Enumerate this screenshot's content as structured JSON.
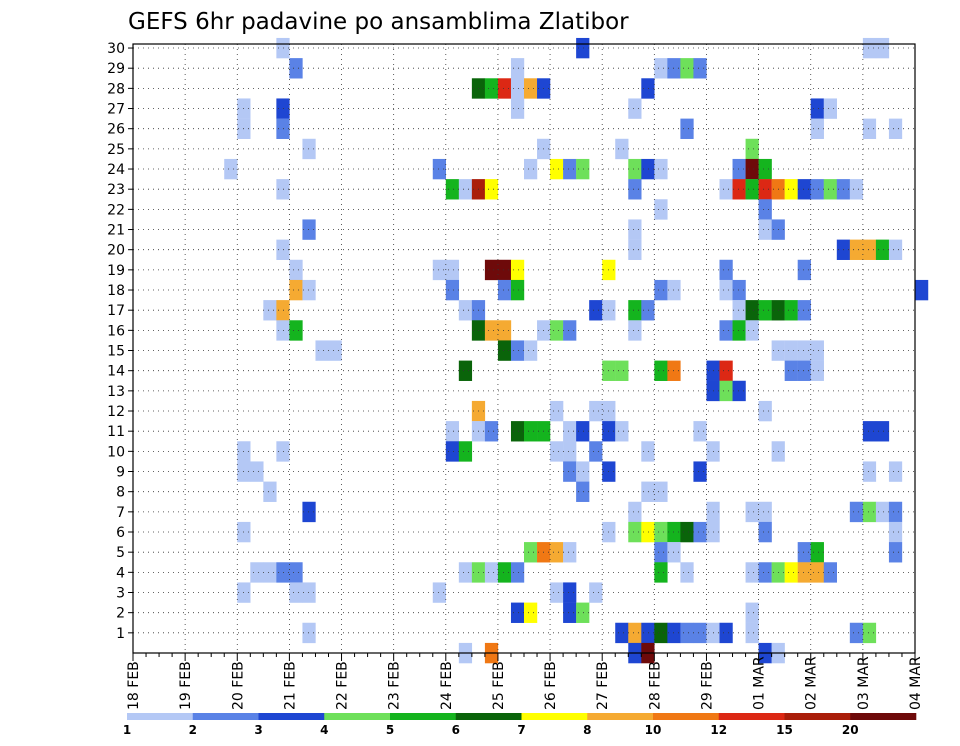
{
  "chart_data": {
    "type": "heatmap",
    "title": "GEFS 6hr padavine po ansamblima Zlatibor",
    "xlabel": "",
    "ylabel": "",
    "x_tick_labels": [
      "18 FEB",
      "19 FEB",
      "20 FEB",
      "21 FEB",
      "22 FEB",
      "23 FEB",
      "24 FEB",
      "25 FEB",
      "26 FEB",
      "27 FEB",
      "28 FEB",
      "29 FEB",
      "01 MAR",
      "02 MAR",
      "03 MAR",
      "04 MAR"
    ],
    "y_tick_labels": [
      "1",
      "2",
      "3",
      "4",
      "5",
      "6",
      "7",
      "8",
      "9",
      "10",
      "11",
      "12",
      "13",
      "14",
      "15",
      "16",
      "17",
      "18",
      "19",
      "20",
      "21",
      "22",
      "23",
      "24",
      "25",
      "26",
      "27",
      "28",
      "29",
      "30"
    ],
    "x_unit": "6-hour step from 18 FEB 00Z",
    "xlim": [
      0,
      60
    ],
    "ylim": [
      0,
      30
    ],
    "grid": true,
    "colorbar": {
      "tick_labels": [
        "1",
        "2",
        "3",
        "4",
        "5",
        "6",
        "7",
        "8",
        "10",
        "12",
        "15",
        "20"
      ],
      "colors": [
        "#b4c8f5",
        "#5a82e6",
        "#1e46d2",
        "#6ee05a",
        "#14b41e",
        "#0a640a",
        "#ffff00",
        "#f5aa32",
        "#f07814",
        "#dc2814",
        "#aa1e0a",
        "#6e0a0a"
      ]
    },
    "cells_format": "[member, step, level]",
    "cells": [
      [
        30,
        11,
        0
      ],
      [
        30,
        34,
        2
      ],
      [
        30,
        56,
        0
      ],
      [
        30,
        57,
        0
      ],
      [
        29,
        12,
        1
      ],
      [
        29,
        29,
        0
      ],
      [
        29,
        40,
        0
      ],
      [
        29,
        41,
        1
      ],
      [
        29,
        42,
        3
      ],
      [
        29,
        43,
        1
      ],
      [
        28,
        26,
        5
      ],
      [
        28,
        27,
        4
      ],
      [
        28,
        28,
        9
      ],
      [
        28,
        29,
        0
      ],
      [
        28,
        30,
        7
      ],
      [
        28,
        31,
        2
      ],
      [
        28,
        39,
        2
      ],
      [
        27,
        8,
        0
      ],
      [
        27,
        11,
        2
      ],
      [
        27,
        29,
        0
      ],
      [
        27,
        38,
        0
      ],
      [
        27,
        52,
        2
      ],
      [
        27,
        53,
        0
      ],
      [
        26,
        8,
        0
      ],
      [
        26,
        11,
        1
      ],
      [
        26,
        42,
        1
      ],
      [
        26,
        52,
        0
      ],
      [
        26,
        56,
        0
      ],
      [
        26,
        58,
        0
      ],
      [
        25,
        13,
        0
      ],
      [
        25,
        31,
        0
      ],
      [
        25,
        37,
        0
      ],
      [
        25,
        47,
        3
      ],
      [
        24,
        7,
        0
      ],
      [
        24,
        23,
        1
      ],
      [
        24,
        30,
        0
      ],
      [
        24,
        32,
        6
      ],
      [
        24,
        33,
        1
      ],
      [
        24,
        34,
        3
      ],
      [
        24,
        38,
        3
      ],
      [
        24,
        39,
        2
      ],
      [
        24,
        40,
        0
      ],
      [
        24,
        46,
        1
      ],
      [
        24,
        47,
        11
      ],
      [
        24,
        48,
        4
      ],
      [
        23,
        11,
        0
      ],
      [
        23,
        24,
        4
      ],
      [
        23,
        25,
        0
      ],
      [
        23,
        26,
        10
      ],
      [
        23,
        27,
        6
      ],
      [
        23,
        38,
        1
      ],
      [
        23,
        45,
        0
      ],
      [
        23,
        46,
        9
      ],
      [
        23,
        47,
        4
      ],
      [
        23,
        48,
        9
      ],
      [
        23,
        49,
        8
      ],
      [
        23,
        50,
        6
      ],
      [
        23,
        51,
        2
      ],
      [
        23,
        52,
        1
      ],
      [
        23,
        53,
        3
      ],
      [
        23,
        54,
        1
      ],
      [
        23,
        55,
        0
      ],
      [
        22,
        40,
        0
      ],
      [
        22,
        48,
        1
      ],
      [
        21,
        13,
        1
      ],
      [
        21,
        38,
        0
      ],
      [
        21,
        48,
        0
      ],
      [
        21,
        49,
        1
      ],
      [
        20,
        11,
        0
      ],
      [
        20,
        38,
        0
      ],
      [
        20,
        54,
        2
      ],
      [
        20,
        55,
        7
      ],
      [
        20,
        56,
        7
      ],
      [
        20,
        57,
        4
      ],
      [
        20,
        58,
        0
      ],
      [
        19,
        12,
        0
      ],
      [
        19,
        23,
        0
      ],
      [
        19,
        24,
        0
      ],
      [
        19,
        27,
        11
      ],
      [
        19,
        28,
        11
      ],
      [
        19,
        29,
        6
      ],
      [
        19,
        36,
        6
      ],
      [
        19,
        45,
        1
      ],
      [
        19,
        51,
        1
      ],
      [
        18,
        12,
        7
      ],
      [
        18,
        13,
        0
      ],
      [
        18,
        24,
        1
      ],
      [
        18,
        28,
        1
      ],
      [
        18,
        29,
        4
      ],
      [
        18,
        40,
        1
      ],
      [
        18,
        41,
        0
      ],
      [
        18,
        45,
        0
      ],
      [
        18,
        46,
        1
      ],
      [
        18,
        60,
        2
      ],
      [
        17,
        10,
        0
      ],
      [
        17,
        11,
        7
      ],
      [
        17,
        25,
        0
      ],
      [
        17,
        26,
        1
      ],
      [
        17,
        35,
        2
      ],
      [
        17,
        36,
        0
      ],
      [
        17,
        38,
        4
      ],
      [
        17,
        39,
        1
      ],
      [
        17,
        46,
        0
      ],
      [
        17,
        47,
        5
      ],
      [
        17,
        48,
        4
      ],
      [
        17,
        49,
        5
      ],
      [
        17,
        50,
        4
      ],
      [
        17,
        51,
        1
      ],
      [
        16,
        11,
        0
      ],
      [
        16,
        12,
        4
      ],
      [
        16,
        26,
        5
      ],
      [
        16,
        27,
        7
      ],
      [
        16,
        28,
        7
      ],
      [
        16,
        31,
        0
      ],
      [
        16,
        32,
        3
      ],
      [
        16,
        33,
        1
      ],
      [
        16,
        38,
        0
      ],
      [
        16,
        45,
        1
      ],
      [
        16,
        46,
        4
      ],
      [
        16,
        47,
        0
      ],
      [
        15,
        14,
        0
      ],
      [
        15,
        15,
        0
      ],
      [
        15,
        28,
        5
      ],
      [
        15,
        29,
        1
      ],
      [
        15,
        30,
        0
      ],
      [
        15,
        49,
        0
      ],
      [
        15,
        50,
        0
      ],
      [
        15,
        51,
        0
      ],
      [
        15,
        52,
        0
      ],
      [
        14,
        25,
        5
      ],
      [
        14,
        36,
        3
      ],
      [
        14,
        37,
        3
      ],
      [
        14,
        40,
        4
      ],
      [
        14,
        41,
        8
      ],
      [
        14,
        44,
        2
      ],
      [
        14,
        45,
        9
      ],
      [
        14,
        50,
        1
      ],
      [
        14,
        51,
        1
      ],
      [
        14,
        52,
        0
      ],
      [
        13,
        44,
        2
      ],
      [
        13,
        45,
        3
      ],
      [
        13,
        46,
        2
      ],
      [
        12,
        26,
        7
      ],
      [
        12,
        32,
        0
      ],
      [
        12,
        35,
        0
      ],
      [
        12,
        36,
        0
      ],
      [
        12,
        48,
        0
      ],
      [
        11,
        24,
        0
      ],
      [
        11,
        26,
        0
      ],
      [
        11,
        27,
        1
      ],
      [
        11,
        29,
        5
      ],
      [
        11,
        30,
        4
      ],
      [
        11,
        31,
        4
      ],
      [
        11,
        33,
        0
      ],
      [
        11,
        34,
        2
      ],
      [
        11,
        36,
        2
      ],
      [
        11,
        37,
        0
      ],
      [
        11,
        43,
        0
      ],
      [
        11,
        56,
        2
      ],
      [
        11,
        57,
        2
      ],
      [
        10,
        8,
        0
      ],
      [
        10,
        11,
        0
      ],
      [
        10,
        24,
        2
      ],
      [
        10,
        25,
        4
      ],
      [
        10,
        32,
        0
      ],
      [
        10,
        33,
        0
      ],
      [
        10,
        35,
        1
      ],
      [
        10,
        39,
        0
      ],
      [
        10,
        44,
        0
      ],
      [
        10,
        49,
        0
      ],
      [
        9,
        8,
        0
      ],
      [
        9,
        9,
        0
      ],
      [
        9,
        33,
        1
      ],
      [
        9,
        34,
        0
      ],
      [
        9,
        36,
        2
      ],
      [
        9,
        43,
        2
      ],
      [
        9,
        56,
        0
      ],
      [
        9,
        58,
        0
      ],
      [
        8,
        10,
        0
      ],
      [
        8,
        34,
        1
      ],
      [
        8,
        39,
        0
      ],
      [
        8,
        40,
        0
      ],
      [
        7,
        13,
        2
      ],
      [
        7,
        38,
        0
      ],
      [
        7,
        44,
        0
      ],
      [
        7,
        47,
        0
      ],
      [
        7,
        48,
        0
      ],
      [
        7,
        55,
        1
      ],
      [
        7,
        56,
        3
      ],
      [
        7,
        57,
        0
      ],
      [
        7,
        58,
        1
      ],
      [
        6,
        8,
        0
      ],
      [
        6,
        36,
        0
      ],
      [
        6,
        38,
        3
      ],
      [
        6,
        39,
        6
      ],
      [
        6,
        40,
        3
      ],
      [
        6,
        41,
        4
      ],
      [
        6,
        42,
        5
      ],
      [
        6,
        43,
        1
      ],
      [
        6,
        44,
        0
      ],
      [
        6,
        48,
        1
      ],
      [
        6,
        58,
        0
      ],
      [
        5,
        30,
        3
      ],
      [
        5,
        31,
        8
      ],
      [
        5,
        32,
        7
      ],
      [
        5,
        33,
        0
      ],
      [
        5,
        40,
        1
      ],
      [
        5,
        41,
        0
      ],
      [
        5,
        51,
        1
      ],
      [
        5,
        52,
        4
      ],
      [
        5,
        58,
        1
      ],
      [
        4,
        9,
        0
      ],
      [
        4,
        10,
        0
      ],
      [
        4,
        11,
        1
      ],
      [
        4,
        12,
        1
      ],
      [
        4,
        25,
        0
      ],
      [
        4,
        26,
        3
      ],
      [
        4,
        27,
        0
      ],
      [
        4,
        28,
        4
      ],
      [
        4,
        29,
        1
      ],
      [
        4,
        40,
        4
      ],
      [
        4,
        42,
        0
      ],
      [
        4,
        47,
        0
      ],
      [
        4,
        48,
        1
      ],
      [
        4,
        49,
        3
      ],
      [
        4,
        50,
        6
      ],
      [
        4,
        51,
        7
      ],
      [
        4,
        52,
        7
      ],
      [
        4,
        53,
        1
      ],
      [
        3,
        8,
        0
      ],
      [
        3,
        12,
        0
      ],
      [
        3,
        13,
        0
      ],
      [
        3,
        23,
        0
      ],
      [
        3,
        32,
        0
      ],
      [
        3,
        33,
        2
      ],
      [
        3,
        35,
        0
      ],
      [
        2,
        29,
        2
      ],
      [
        2,
        30,
        6
      ],
      [
        2,
        33,
        2
      ],
      [
        2,
        34,
        3
      ],
      [
        2,
        47,
        0
      ],
      [
        1,
        13,
        0
      ],
      [
        1,
        37,
        2
      ],
      [
        1,
        38,
        7
      ],
      [
        1,
        39,
        2
      ],
      [
        1,
        40,
        5
      ],
      [
        1,
        41,
        2
      ],
      [
        1,
        42,
        1
      ],
      [
        1,
        43,
        1
      ],
      [
        1,
        44,
        0
      ],
      [
        1,
        45,
        2
      ],
      [
        1,
        47,
        0
      ],
      [
        1,
        55,
        1
      ],
      [
        1,
        56,
        3
      ],
      [
        0,
        25,
        0
      ],
      [
        0,
        27,
        8
      ],
      [
        0,
        38,
        2
      ],
      [
        0,
        39,
        11
      ],
      [
        0,
        48,
        2
      ],
      [
        0,
        49,
        0
      ]
    ]
  }
}
